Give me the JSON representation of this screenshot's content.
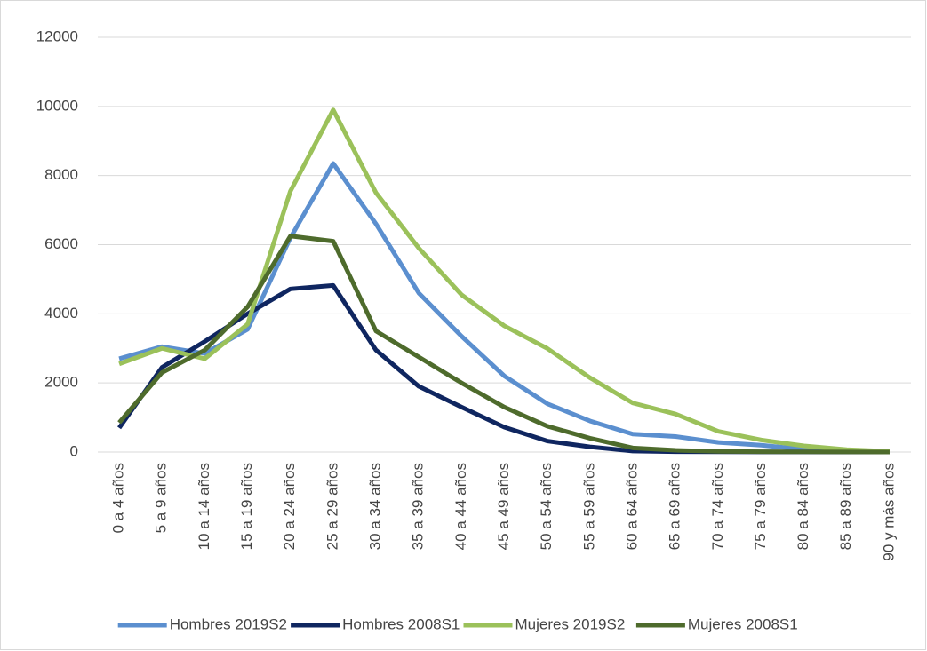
{
  "chart_data": {
    "type": "line",
    "categories": [
      "0 a 4 años",
      "5 a 9 años",
      "10 a 14 años",
      "15 a 19 años",
      "20 a 24 años",
      "25 a 29 años",
      "30 a 34 años",
      "35 a 39 años",
      "40 a 44 años",
      "45 a 49 años",
      "50 a 54 años",
      "55 a 59 años",
      "60 a 64 años",
      "65 a 69 años",
      "70 a 74 años",
      "75 a 79 años",
      "80 a 84 años",
      "85 a 89 años",
      "90 y más años"
    ],
    "series": [
      {
        "name": "Hombres 2019S2",
        "color": "#5b8fcf",
        "values": [
          2700,
          3050,
          2850,
          3550,
          6200,
          8350,
          6600,
          4600,
          3350,
          2200,
          1400,
          900,
          520,
          450,
          280,
          200,
          80,
          30,
          10
        ]
      },
      {
        "name": "Hombres 2008S1",
        "color": "#0f2660",
        "values": [
          700,
          2450,
          3200,
          4000,
          4720,
          4820,
          2950,
          1900,
          1300,
          720,
          320,
          150,
          30,
          10,
          5,
          3,
          2,
          1,
          0
        ]
      },
      {
        "name": "Mujeres 2019S2",
        "color": "#9bc15a",
        "values": [
          2550,
          3000,
          2700,
          3700,
          7550,
          9900,
          7500,
          5900,
          4550,
          3650,
          3000,
          2150,
          1420,
          1100,
          600,
          350,
          180,
          70,
          20
        ]
      },
      {
        "name": "Mujeres 2008S1",
        "color": "#4e6b2c",
        "values": [
          850,
          2300,
          2950,
          4200,
          6250,
          6100,
          3500,
          2750,
          2000,
          1300,
          750,
          400,
          120,
          50,
          20,
          10,
          5,
          2,
          1
        ]
      }
    ],
    "ylim": [
      0,
      12000
    ],
    "yticks": [
      0,
      2000,
      4000,
      6000,
      8000,
      10000,
      12000
    ],
    "grid": true,
    "legend": "bottom"
  }
}
